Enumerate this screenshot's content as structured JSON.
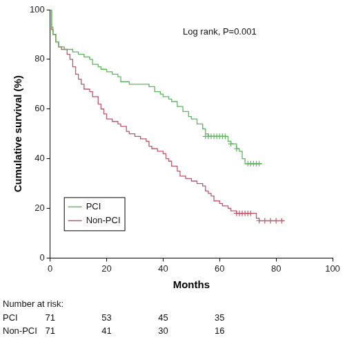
{
  "chart_data": {
    "type": "line",
    "annotation": "Log rank, P=0.001",
    "x_label": "Months",
    "y_label": "Cumulative survival (%)",
    "xlim": [
      0,
      100
    ],
    "xticks": [
      0,
      20,
      40,
      60,
      80,
      100
    ],
    "ylim": [
      0,
      100
    ],
    "yticks": [
      0,
      20,
      40,
      60,
      80,
      100
    ],
    "grid": false,
    "legend": "lower left",
    "line_style": "step",
    "marker": "cross",
    "series": [
      {
        "name": "PCI",
        "color": "#5cb85c",
        "x": [
          0,
          0.5,
          1,
          2,
          3,
          5,
          8,
          10,
          12,
          14,
          15,
          17,
          18,
          20,
          22,
          24,
          25,
          28,
          33,
          35,
          37,
          39,
          40,
          42,
          43,
          45,
          47,
          49,
          50,
          52,
          54,
          55,
          56,
          63,
          64,
          66,
          67,
          68,
          69,
          75
        ],
        "values": [
          100,
          93,
          90,
          87,
          85,
          84,
          83,
          82,
          81,
          80,
          78,
          77,
          76,
          75,
          74,
          73,
          71,
          70,
          70,
          69,
          67,
          66,
          65,
          64,
          63,
          61,
          59,
          57,
          56,
          54,
          52,
          50,
          49,
          47,
          46,
          44,
          43,
          40,
          38,
          38
        ],
        "censored_x": [
          55,
          56,
          57,
          58,
          59,
          60,
          61,
          62,
          64,
          66,
          70,
          71,
          72,
          73,
          74
        ],
        "censored_values": [
          49,
          49,
          49,
          49,
          49,
          49,
          49,
          49,
          46,
          44,
          38,
          38,
          38,
          38,
          38
        ]
      },
      {
        "name": "Non-PCI",
        "color": "#c2566a",
        "x": [
          0,
          0.5,
          1,
          2,
          3,
          4,
          6,
          7,
          8,
          9,
          10,
          11,
          12,
          14,
          15,
          17,
          18,
          19,
          20,
          22,
          24,
          25,
          27,
          28,
          30,
          32,
          34,
          35,
          36,
          38,
          40,
          41,
          42,
          43,
          45,
          46,
          48,
          50,
          52,
          54,
          55,
          56,
          57,
          58,
          60,
          61,
          63,
          64,
          66,
          73,
          74,
          83
        ],
        "values": [
          100,
          92,
          90,
          87,
          85,
          84,
          82,
          80,
          77,
          74,
          72,
          70,
          68,
          67,
          65,
          62,
          60,
          58,
          56,
          55,
          54,
          53,
          51,
          50,
          49,
          48,
          47,
          45,
          44,
          43,
          42,
          40,
          39,
          37,
          35,
          33,
          32,
          31,
          30,
          29,
          27,
          26,
          25,
          23,
          22,
          21,
          20,
          19,
          18,
          16,
          15,
          15
        ],
        "censored_x": [
          66,
          67,
          68,
          69,
          70,
          71,
          74,
          76,
          78,
          80,
          82
        ],
        "censored_values": [
          18,
          18,
          18,
          18,
          18,
          18,
          15,
          15,
          15,
          15,
          15
        ]
      }
    ],
    "number_at_risk": {
      "title": "Number at risk:",
      "x": [
        0,
        20,
        40,
        60
      ],
      "rows": [
        {
          "name": "PCI",
          "values": [
            71,
            53,
            45,
            35
          ]
        },
        {
          "name": "Non-PCI",
          "values": [
            71,
            41,
            30,
            16
          ]
        }
      ]
    }
  }
}
